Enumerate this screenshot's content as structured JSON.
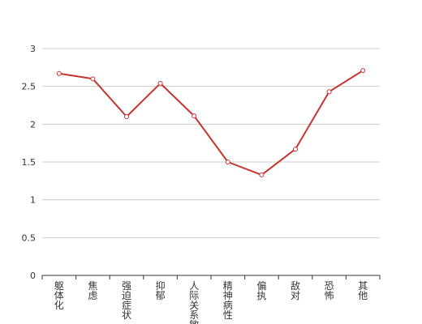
{
  "chart_data": {
    "type": "line",
    "title": "",
    "xlabel": "",
    "ylabel": "",
    "categories": [
      "躯体化",
      "焦虑",
      "强迫症状",
      "抑郁",
      "人际关系敏感",
      "精神病性",
      "偏执",
      "敌对",
      "恐怖",
      "其他"
    ],
    "series": [
      {
        "values": [
          2.67,
          2.6,
          2.1,
          2.54,
          2.11,
          1.5,
          1.33,
          1.67,
          2.43,
          2.71
        ]
      }
    ],
    "ylim": [
      0,
      3
    ],
    "yticks": [
      "0",
      "0.5",
      "1",
      "1.5",
      "2",
      "2.5",
      "3"
    ],
    "grid": true,
    "colors": {
      "line": "#c23531",
      "marker_fill": "#ffffff",
      "grid": "#cccccc",
      "axis": "#333333"
    }
  }
}
